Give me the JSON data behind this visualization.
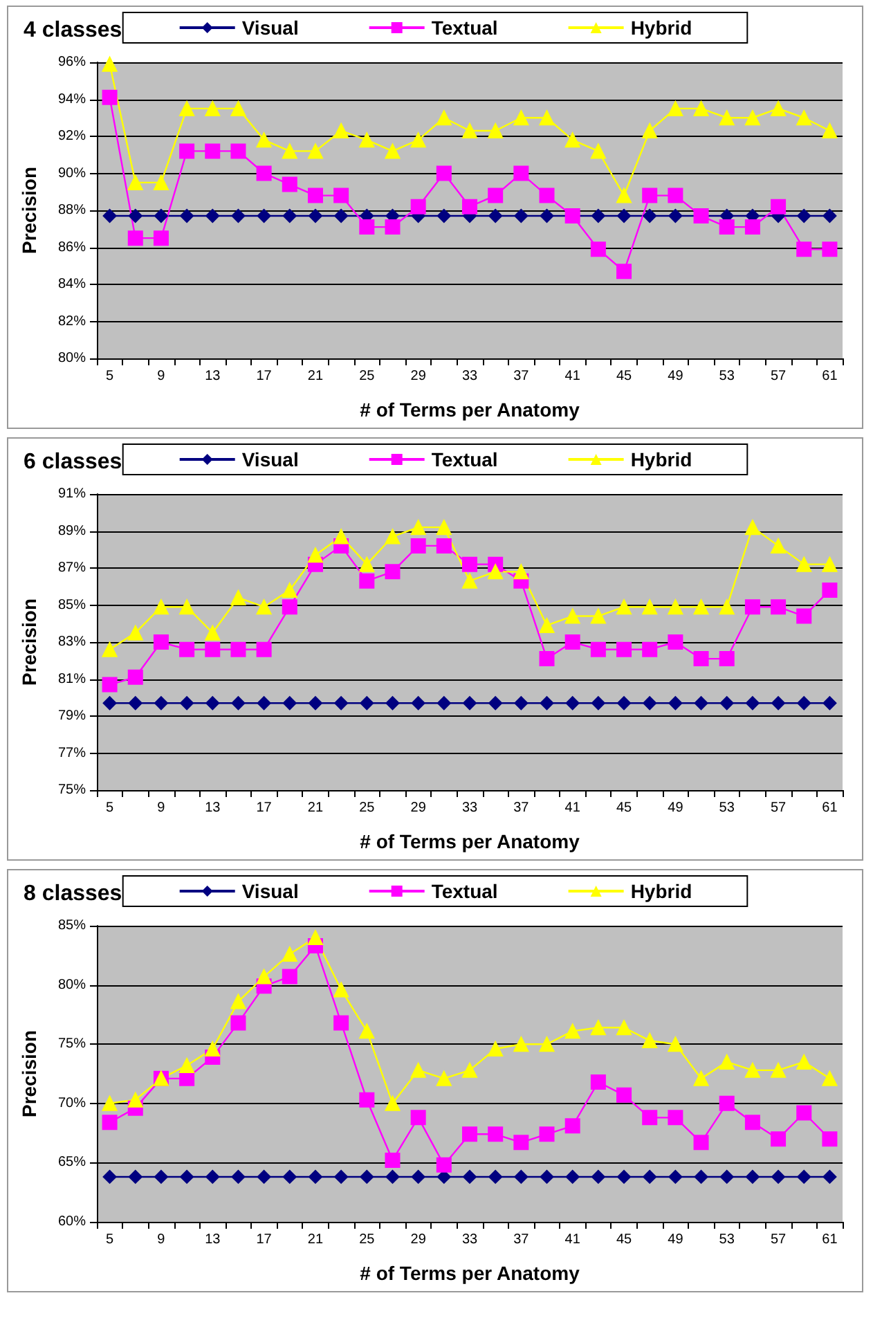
{
  "chart_data": [
    {
      "type": "line",
      "title": "4 classes",
      "xlabel": "# of Terms per Anatomy",
      "ylabel": "Precision",
      "legend": "top",
      "grid": "y",
      "categories": [
        "5",
        null,
        "9",
        null,
        "13",
        null,
        "17",
        null,
        "21",
        null,
        "25",
        null,
        "29",
        null,
        "33",
        null,
        "37",
        null,
        "41",
        null,
        "45",
        null,
        "49",
        null,
        "53",
        null,
        "57",
        null,
        "61"
      ],
      "ylim": [
        80,
        96
      ],
      "yticks": [
        {
          "value": 80,
          "label": "80%"
        },
        {
          "value": 82,
          "label": "82%"
        },
        {
          "value": 84,
          "label": "84%"
        },
        {
          "value": 86,
          "label": "86%"
        },
        {
          "value": 88,
          "label": "88%"
        },
        {
          "value": 90,
          "label": "90%"
        },
        {
          "value": 92,
          "label": "92%"
        },
        {
          "value": 94,
          "label": "94%"
        },
        {
          "value": 96,
          "label": "96%"
        }
      ],
      "series": [
        {
          "name": "Visual",
          "color": "#000080",
          "marker": "diamond",
          "values": [
            87.7,
            87.7,
            87.7,
            87.7,
            87.7,
            87.7,
            87.7,
            87.7,
            87.7,
            87.7,
            87.7,
            87.7,
            87.7,
            87.7,
            87.7,
            87.7,
            87.7,
            87.7,
            87.7,
            87.7,
            87.7,
            87.7,
            87.7,
            87.7,
            87.7,
            87.7,
            87.7,
            87.7,
            87.7
          ]
        },
        {
          "name": "Textual",
          "color": "#ff00ff",
          "marker": "square",
          "values": [
            94.1,
            86.5,
            86.5,
            91.2,
            91.2,
            91.2,
            90.0,
            89.4,
            88.8,
            88.8,
            87.1,
            87.1,
            88.2,
            90.0,
            88.2,
            88.8,
            90.0,
            88.8,
            87.7,
            85.9,
            84.7,
            88.8,
            88.8,
            87.7,
            87.1,
            87.1,
            88.2,
            85.9,
            85.9
          ]
        },
        {
          "name": "Hybrid",
          "color": "#ffff00",
          "marker": "triangle",
          "values": [
            95.9,
            89.5,
            89.5,
            93.5,
            93.5,
            93.5,
            91.8,
            91.2,
            91.2,
            92.3,
            91.8,
            91.2,
            91.8,
            93.0,
            92.3,
            92.3,
            93.0,
            93.0,
            91.8,
            91.2,
            88.8,
            92.3,
            93.5,
            93.5,
            93.0,
            93.0,
            93.5,
            93.0,
            92.3
          ]
        }
      ]
    },
    {
      "type": "line",
      "title": "6 classes",
      "xlabel": "# of Terms per Anatomy",
      "ylabel": "Precision",
      "legend": "top",
      "grid": "y",
      "categories": [
        "5",
        null,
        "9",
        null,
        "13",
        null,
        "17",
        null,
        "21",
        null,
        "25",
        null,
        "29",
        null,
        "33",
        null,
        "37",
        null,
        "41",
        null,
        "45",
        null,
        "49",
        null,
        "53",
        null,
        "57",
        null,
        "61"
      ],
      "ylim": [
        75,
        91
      ],
      "yticks": [
        {
          "value": 75,
          "label": "75%"
        },
        {
          "value": 77,
          "label": "77%"
        },
        {
          "value": 79,
          "label": "79%"
        },
        {
          "value": 81,
          "label": "81%"
        },
        {
          "value": 83,
          "label": "83%"
        },
        {
          "value": 85,
          "label": "85%"
        },
        {
          "value": 87,
          "label": "87%"
        },
        {
          "value": 89,
          "label": "89%"
        },
        {
          "value": 91,
          "label": "91%"
        }
      ],
      "series": [
        {
          "name": "Visual",
          "color": "#000080",
          "marker": "diamond",
          "values": [
            79.7,
            79.7,
            79.7,
            79.7,
            79.7,
            79.7,
            79.7,
            79.7,
            79.7,
            79.7,
            79.7,
            79.7,
            79.7,
            79.7,
            79.7,
            79.7,
            79.7,
            79.7,
            79.7,
            79.7,
            79.7,
            79.7,
            79.7,
            79.7,
            79.7,
            79.7,
            79.7,
            79.7,
            79.7
          ]
        },
        {
          "name": "Textual",
          "color": "#ff00ff",
          "marker": "square",
          "values": [
            80.7,
            81.1,
            83.0,
            82.6,
            82.6,
            82.6,
            82.6,
            84.9,
            87.2,
            88.2,
            86.3,
            86.8,
            88.2,
            88.2,
            87.2,
            87.2,
            86.3,
            82.1,
            83.0,
            82.6,
            82.6,
            82.6,
            83.0,
            82.1,
            82.1,
            84.9,
            84.9,
            84.4,
            85.8
          ]
        },
        {
          "name": "Hybrid",
          "color": "#ffff00",
          "marker": "triangle",
          "values": [
            82.6,
            83.5,
            84.9,
            84.9,
            83.5,
            85.4,
            84.9,
            85.8,
            87.7,
            88.7,
            87.2,
            88.7,
            89.2,
            89.2,
            86.3,
            86.8,
            86.8,
            83.9,
            84.4,
            84.4,
            84.9,
            84.9,
            84.9,
            84.9,
            84.9,
            89.2,
            88.2,
            87.2,
            87.2
          ]
        }
      ]
    },
    {
      "type": "line",
      "title": "8 classes",
      "xlabel": "# of Terms per Anatomy",
      "ylabel": "Precision",
      "legend": "top",
      "grid": "y",
      "categories": [
        "5",
        null,
        "9",
        null,
        "13",
        null,
        "17",
        null,
        "21",
        null,
        "25",
        null,
        "29",
        null,
        "33",
        null,
        "37",
        null,
        "41",
        null,
        "45",
        null,
        "49",
        null,
        "53",
        null,
        "57",
        null,
        "61"
      ],
      "ylim": [
        60,
        85
      ],
      "yticks": [
        {
          "value": 60,
          "label": "60%"
        },
        {
          "value": 65,
          "label": "65%"
        },
        {
          "value": 70,
          "label": "70%"
        },
        {
          "value": 75,
          "label": "75%"
        },
        {
          "value": 80,
          "label": "80%"
        },
        {
          "value": 85,
          "label": "85%"
        }
      ],
      "series": [
        {
          "name": "Visual",
          "color": "#000080",
          "marker": "diamond",
          "values": [
            63.8,
            63.8,
            63.8,
            63.8,
            63.8,
            63.8,
            63.8,
            63.8,
            63.8,
            63.8,
            63.8,
            63.8,
            63.8,
            63.8,
            63.8,
            63.8,
            63.8,
            63.8,
            63.8,
            63.8,
            63.8,
            63.8,
            63.8,
            63.8,
            63.8,
            63.8,
            63.8,
            63.8,
            63.8
          ]
        },
        {
          "name": "Textual",
          "color": "#ff00ff",
          "marker": "square",
          "values": [
            68.4,
            69.6,
            72.1,
            72.1,
            73.9,
            76.8,
            79.9,
            80.7,
            83.3,
            76.8,
            70.3,
            65.2,
            68.8,
            64.8,
            67.4,
            67.4,
            66.7,
            67.4,
            68.1,
            71.8,
            70.7,
            68.8,
            68.8,
            66.7,
            70.0,
            68.4,
            67.0,
            69.2,
            67.0
          ]
        },
        {
          "name": "Hybrid",
          "color": "#ffff00",
          "marker": "triangle",
          "values": [
            70.0,
            70.3,
            72.1,
            73.2,
            74.6,
            78.6,
            80.7,
            82.6,
            84.0,
            79.6,
            76.1,
            70.0,
            72.8,
            72.1,
            72.8,
            74.6,
            75.0,
            75.0,
            76.1,
            76.4,
            76.4,
            75.3,
            75.0,
            72.1,
            73.5,
            72.8,
            72.8,
            73.5,
            72.1
          ]
        }
      ]
    }
  ]
}
